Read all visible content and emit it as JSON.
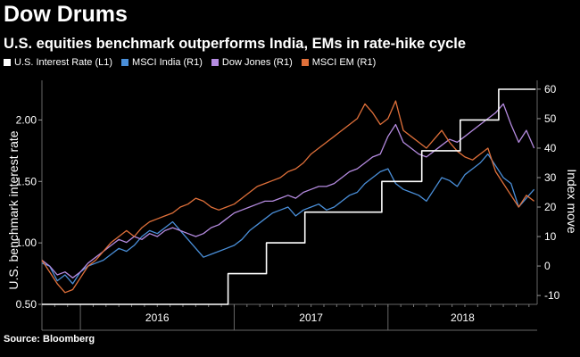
{
  "title": "Dow Drums",
  "subtitle": "U.S. equities benchmark outperforms India, EMs in rate-hike cycle",
  "source": "Source: Bloomberg",
  "legend": [
    {
      "label": "U.S. Interest Rate (L1)",
      "color": "#ffffff"
    },
    {
      "label": "MSCI India (R1)",
      "color": "#4a8fd9"
    },
    {
      "label": "Dow Jones (R1)",
      "color": "#b58be0"
    },
    {
      "label": "MSCI EM (R1)",
      "color": "#e0703a"
    }
  ],
  "chart_data": {
    "type": "line",
    "title": "Dow Drums",
    "subtitle": "U.S. equities benchmark outperforms India, EMs in rate-hike cycle",
    "xlabel": "",
    "ylabel_left": "U.S. benchmark interest rate",
    "ylabel_right": "Index move",
    "x_range": [
      2015.75,
      2018.97
    ],
    "x_tick_labels": [
      "2016",
      "2017",
      "2018"
    ],
    "year_boundaries": [
      2016.0,
      2017.0,
      2018.0
    ],
    "ylim_left": [
      0.5,
      2.25
    ],
    "yticks_left": [
      0.5,
      1.0,
      1.5,
      2.0
    ],
    "yticks_left_labels": [
      "0.50",
      "1.00",
      "1.50",
      "2.00"
    ],
    "ylim_right": [
      -13,
      63
    ],
    "yticks_right": [
      -10,
      0,
      10,
      20,
      30,
      40,
      50,
      60
    ],
    "yticks_right_labels": [
      "-10",
      "0",
      "10",
      "20",
      "30",
      "40",
      "50",
      "60"
    ],
    "series": [
      {
        "name": "U.S. Interest Rate (L1)",
        "axis": "left",
        "step": true,
        "color": "#ffffff",
        "x": [
          2015.75,
          2016.96,
          2017.21,
          2017.46,
          2017.96,
          2018.22,
          2018.47,
          2018.72,
          2018.96
        ],
        "y": [
          0.5,
          0.75,
          1.0,
          1.25,
          1.5,
          1.75,
          2.0,
          2.25,
          2.25
        ]
      },
      {
        "name": "MSCI India (R1)",
        "axis": "right",
        "color": "#4a8fd9",
        "x": [
          2015.75,
          2015.8,
          2015.85,
          2015.9,
          2015.95,
          2016.0,
          2016.05,
          2016.1,
          2016.15,
          2016.2,
          2016.25,
          2016.3,
          2016.35,
          2016.4,
          2016.45,
          2016.5,
          2016.55,
          2016.6,
          2016.65,
          2016.7,
          2016.75,
          2016.8,
          2016.85,
          2016.9,
          2016.95,
          2017.0,
          2017.05,
          2017.1,
          2017.15,
          2017.2,
          2017.25,
          2017.3,
          2017.35,
          2017.4,
          2017.45,
          2017.5,
          2017.55,
          2017.6,
          2017.65,
          2017.7,
          2017.75,
          2017.8,
          2017.85,
          2017.9,
          2017.95,
          2018.0,
          2018.05,
          2018.1,
          2018.15,
          2018.2,
          2018.25,
          2018.3,
          2018.35,
          2018.4,
          2018.45,
          2018.5,
          2018.55,
          2018.6,
          2018.65,
          2018.7,
          2018.75,
          2018.8,
          2018.85,
          2018.9,
          2018.95
        ],
        "y": [
          1,
          0,
          -5,
          -3,
          -6,
          -2,
          0,
          1,
          2,
          4,
          6,
          5,
          7,
          10,
          12,
          11,
          13,
          15,
          12,
          9,
          6,
          3,
          4,
          5,
          6,
          7,
          9,
          12,
          14,
          16,
          18,
          19,
          20,
          17,
          19,
          20,
          21,
          19,
          20,
          22,
          24,
          25,
          28,
          30,
          32,
          33,
          28,
          26,
          25,
          24,
          22,
          26,
          30,
          29,
          27,
          31,
          33,
          35,
          38,
          34,
          30,
          28,
          20,
          23,
          26
        ]
      },
      {
        "name": "Dow Jones (R1)",
        "axis": "right",
        "color": "#b58be0",
        "x": [
          2015.75,
          2015.8,
          2015.85,
          2015.9,
          2015.95,
          2016.0,
          2016.05,
          2016.1,
          2016.15,
          2016.2,
          2016.25,
          2016.3,
          2016.35,
          2016.4,
          2016.45,
          2016.5,
          2016.55,
          2016.6,
          2016.65,
          2016.7,
          2016.75,
          2016.8,
          2016.85,
          2016.9,
          2016.95,
          2017.0,
          2017.05,
          2017.1,
          2017.15,
          2017.2,
          2017.25,
          2017.3,
          2017.35,
          2017.4,
          2017.45,
          2017.5,
          2017.55,
          2017.6,
          2017.65,
          2017.7,
          2017.75,
          2017.8,
          2017.85,
          2017.9,
          2017.95,
          2018.0,
          2018.05,
          2018.1,
          2018.15,
          2018.2,
          2018.25,
          2018.3,
          2018.35,
          2018.4,
          2018.45,
          2018.5,
          2018.55,
          2018.6,
          2018.65,
          2018.7,
          2018.75,
          2018.8,
          2018.85,
          2018.9,
          2018.95
        ],
        "y": [
          2,
          0,
          -3,
          -2,
          -4,
          -2,
          1,
          3,
          5,
          7,
          9,
          8,
          10,
          9,
          11,
          10,
          12,
          13,
          12,
          11,
          10,
          11,
          13,
          14,
          16,
          18,
          19,
          20,
          21,
          22,
          22,
          23,
          24,
          23,
          25,
          26,
          27,
          27,
          28,
          30,
          32,
          33,
          35,
          37,
          38,
          44,
          48,
          42,
          40,
          38,
          37,
          39,
          41,
          43,
          42,
          44,
          46,
          48,
          50,
          52,
          55,
          48,
          42,
          46,
          40
        ]
      },
      {
        "name": "MSCI EM (R1)",
        "axis": "right",
        "color": "#e0703a",
        "x": [
          2015.75,
          2015.8,
          2015.85,
          2015.9,
          2015.95,
          2016.0,
          2016.05,
          2016.1,
          2016.15,
          2016.2,
          2016.25,
          2016.3,
          2016.35,
          2016.4,
          2016.45,
          2016.5,
          2016.55,
          2016.6,
          2016.65,
          2016.7,
          2016.75,
          2016.8,
          2016.85,
          2016.9,
          2016.95,
          2017.0,
          2017.05,
          2017.1,
          2017.15,
          2017.2,
          2017.25,
          2017.3,
          2017.35,
          2017.4,
          2017.45,
          2017.5,
          2017.55,
          2017.6,
          2017.65,
          2017.7,
          2017.75,
          2017.8,
          2017.85,
          2017.9,
          2017.95,
          2018.0,
          2018.05,
          2018.1,
          2018.15,
          2018.2,
          2018.25,
          2018.3,
          2018.35,
          2018.4,
          2018.45,
          2018.5,
          2018.55,
          2018.6,
          2018.65,
          2018.7,
          2018.75,
          2018.8,
          2018.85,
          2018.9,
          2018.95
        ],
        "y": [
          2,
          -2,
          -6,
          -9,
          -8,
          -4,
          0,
          2,
          5,
          8,
          10,
          12,
          10,
          13,
          15,
          16,
          17,
          18,
          20,
          21,
          23,
          22,
          20,
          19,
          20,
          21,
          23,
          25,
          27,
          28,
          29,
          30,
          32,
          33,
          35,
          38,
          40,
          42,
          44,
          46,
          48,
          50,
          55,
          52,
          48,
          50,
          56,
          46,
          44,
          42,
          40,
          43,
          46,
          42,
          39,
          37,
          36,
          38,
          40,
          32,
          28,
          24,
          20,
          24,
          22
        ]
      }
    ]
  }
}
